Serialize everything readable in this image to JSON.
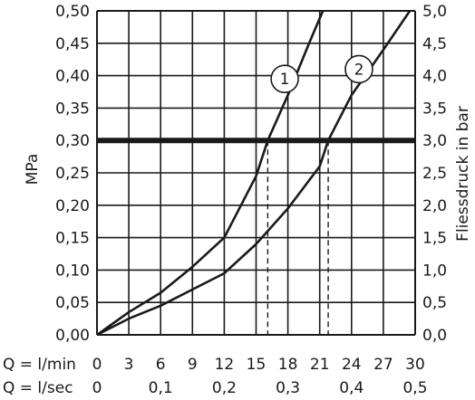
{
  "chart_data": {
    "type": "line",
    "title": "",
    "y_left": {
      "label": "MPa",
      "range": [
        0,
        0.5
      ],
      "ticks": [
        "0,00",
        "0,05",
        "0,10",
        "0,15",
        "0,20",
        "0,25",
        "0,30",
        "0,35",
        "0,40",
        "0,45",
        "0,50"
      ]
    },
    "y_right": {
      "label": "Fliessdruck in bar",
      "range": [
        0,
        5
      ],
      "ticks": [
        "0,0",
        "0,5",
        "1,0",
        "1,5",
        "2,0",
        "2,5",
        "3,0",
        "3,5",
        "4,0",
        "4,5",
        "5,0"
      ]
    },
    "x_lmin": {
      "label": "Q = l/min",
      "range": [
        0,
        30
      ],
      "ticks": [
        "0",
        "3",
        "6",
        "9",
        "12",
        "15",
        "18",
        "21",
        "24",
        "27",
        "30"
      ]
    },
    "x_lsec": {
      "label": "Q = l/sec",
      "range": [
        0,
        0.5
      ],
      "ticks": [
        "0",
        "0,1",
        "0,2",
        "0,3",
        "0,4",
        "0,5"
      ]
    },
    "grid": true,
    "reference_line": {
      "y": 0.3
    },
    "series": [
      {
        "name": "1",
        "x": [
          0,
          3,
          6,
          9,
          12,
          15,
          16.1,
          18,
          20,
          21.3
        ],
        "y": [
          0,
          0.035,
          0.065,
          0.105,
          0.15,
          0.245,
          0.3,
          0.37,
          0.45,
          0.5
        ],
        "drop_line_x": 16.1
      },
      {
        "name": "2",
        "x": [
          0,
          3,
          6,
          9,
          12,
          15,
          18,
          21,
          21.8,
          24,
          27,
          29.5
        ],
        "y": [
          0,
          0.025,
          0.045,
          0.07,
          0.095,
          0.14,
          0.195,
          0.26,
          0.3,
          0.37,
          0.44,
          0.5
        ],
        "drop_line_x": 21.8
      }
    ]
  }
}
